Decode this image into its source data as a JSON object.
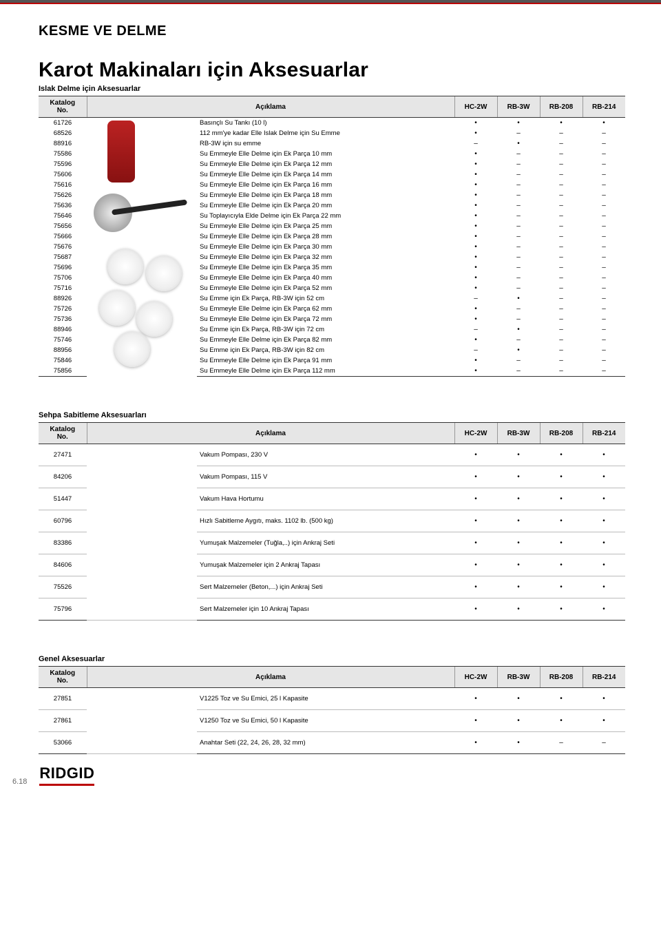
{
  "header": {
    "section": "KESME VE DELME",
    "title": "Karot Makinaları için Aksesuarlar"
  },
  "columns": {
    "katalog": "Katalog\nNo.",
    "aciklama": "Açıklama",
    "marks": [
      "HC-2W",
      "RB-3W",
      "RB-208",
      "RB-214"
    ]
  },
  "dot": "•",
  "dash": "–",
  "tables": [
    {
      "heading": "Islak Delme için Aksesuarlar",
      "tall": false,
      "rows": [
        {
          "no": "61726",
          "desc": "Basınçlı Su Tankı (10 l)",
          "m": [
            "d",
            "d",
            "d",
            "d"
          ]
        },
        {
          "no": "68526",
          "desc": "112 mm'ye kadar Elle Islak Delme için Su Emme",
          "m": [
            "d",
            "–",
            "–",
            "–"
          ]
        },
        {
          "no": "88916",
          "desc": "RB-3W için su emme",
          "m": [
            "–",
            "d",
            "–",
            "–"
          ]
        },
        {
          "no": "75586",
          "desc": "Su Emmeyle Elle Delme için Ek Parça 10 mm",
          "m": [
            "d",
            "–",
            "–",
            "–"
          ]
        },
        {
          "no": "75596",
          "desc": "Su Emmeyle Elle Delme için Ek Parça 12 mm",
          "m": [
            "d",
            "–",
            "–",
            "–"
          ]
        },
        {
          "no": "75606",
          "desc": "Su Emmeyle Elle Delme için Ek Parça 14 mm",
          "m": [
            "d",
            "–",
            "–",
            "–"
          ]
        },
        {
          "no": "75616",
          "desc": "Su Emmeyle Elle Delme için Ek Parça 16 mm",
          "m": [
            "d",
            "–",
            "–",
            "–"
          ]
        },
        {
          "no": "75626",
          "desc": "Su Emmeyle Elle Delme için Ek Parça 18 mm",
          "m": [
            "d",
            "–",
            "–",
            "–"
          ]
        },
        {
          "no": "75636",
          "desc": "Su Emmeyle Elle Delme için Ek Parça 20 mm",
          "m": [
            "d",
            "–",
            "–",
            "–"
          ]
        },
        {
          "no": "75646",
          "desc": "Su Toplayıcıyla Elde Delme için Ek Parça 22 mm",
          "m": [
            "d",
            "–",
            "–",
            "–"
          ]
        },
        {
          "no": "75656",
          "desc": "Su Emmeyle Elle Delme için Ek Parça 25 mm",
          "m": [
            "d",
            "–",
            "–",
            "–"
          ]
        },
        {
          "no": "75666",
          "desc": "Su Emmeyle Elle Delme için Ek Parça 28 mm",
          "m": [
            "d",
            "–",
            "–",
            "–"
          ]
        },
        {
          "no": "75676",
          "desc": "Su Emmeyle Elle Delme için Ek Parça 30 mm",
          "m": [
            "d",
            "–",
            "–",
            "–"
          ]
        },
        {
          "no": "75687",
          "desc": "Su Emmeyle Elle Delme için Ek Parça 32 mm",
          "m": [
            "d",
            "–",
            "–",
            "–"
          ]
        },
        {
          "no": "75696",
          "desc": "Su Emmeyle Elle Delme için Ek Parça 35 mm",
          "m": [
            "d",
            "–",
            "–",
            "–"
          ]
        },
        {
          "no": "75706",
          "desc": "Su Emmeyle Elle Delme için Ek Parça 40 mm",
          "m": [
            "d",
            "–",
            "–",
            "–"
          ]
        },
        {
          "no": "75716",
          "desc": "Su Emmeyle Elle Delme için Ek Parça 52 mm",
          "m": [
            "d",
            "–",
            "–",
            "–"
          ]
        },
        {
          "no": "88926",
          "desc": "Su Emme için Ek Parça, RB-3W için 52 cm",
          "m": [
            "–",
            "d",
            "–",
            "–"
          ]
        },
        {
          "no": "75726",
          "desc": "Su Emmeyle Elle Delme için Ek Parça 62 mm",
          "m": [
            "d",
            "–",
            "–",
            "–"
          ]
        },
        {
          "no": "75736",
          "desc": "Su Emmeyle Elle Delme için Ek Parça 72 mm",
          "m": [
            "d",
            "–",
            "–",
            "–"
          ]
        },
        {
          "no": "88946",
          "desc": "Su Emme için Ek Parça, RB-3W için 72 cm",
          "m": [
            "–",
            "d",
            "–",
            "–"
          ]
        },
        {
          "no": "75746",
          "desc": "Su Emmeyle Elle Delme için Ek Parça 82 mm",
          "m": [
            "d",
            "–",
            "–",
            "–"
          ]
        },
        {
          "no": "88956",
          "desc": "Su Emme için Ek Parça, RB-3W için 82 cm",
          "m": [
            "–",
            "d",
            "–",
            "–"
          ]
        },
        {
          "no": "75846",
          "desc": "Su Emmeyle Elle Delme için Ek Parça 91 mm",
          "m": [
            "d",
            "–",
            "–",
            "–"
          ]
        },
        {
          "no": "75856",
          "desc": "Su Emmeyle Elle Delme için Ek Parça 112 mm",
          "m": [
            "d",
            "–",
            "–",
            "–"
          ]
        }
      ]
    },
    {
      "heading": "Sehpa Sabitleme Aksesuarları",
      "tall": true,
      "rows": [
        {
          "no": "27471",
          "desc": "Vakum Pompası, 230 V",
          "m": [
            "d",
            "d",
            "d",
            "d"
          ]
        },
        {
          "no": "84206",
          "desc": "Vakum Pompası, 115 V",
          "m": [
            "d",
            "d",
            "d",
            "d"
          ]
        },
        {
          "no": "51447",
          "desc": "Vakum Hava Hortumu",
          "m": [
            "d",
            "d",
            "d",
            "d"
          ]
        },
        {
          "no": "60796",
          "desc": "Hızlı Sabitleme Aygıtı, maks. 1102 lb. (500 kg)",
          "m": [
            "d",
            "d",
            "d",
            "d"
          ]
        },
        {
          "no": "83386",
          "desc": "Yumuşak Malzemeler (Tuğla,..) için Ankraj Seti",
          "m": [
            "d",
            "d",
            "d",
            "d"
          ]
        },
        {
          "no": "84606",
          "desc": "Yumuşak Malzemeler için 2 Ankraj Tapası",
          "m": [
            "d",
            "d",
            "d",
            "d"
          ]
        },
        {
          "no": "75526",
          "desc": "Sert Malzemeler (Beton,...) için Ankraj Seti",
          "m": [
            "d",
            "d",
            "d",
            "d"
          ]
        },
        {
          "no": "75796",
          "desc": "Sert Malzemeler için 10 Ankraj Tapası",
          "m": [
            "d",
            "d",
            "d",
            "d"
          ]
        }
      ]
    },
    {
      "heading": "Genel Aksesuarlar",
      "tall": true,
      "rows": [
        {
          "no": "27851",
          "desc": "V1225 Toz ve Su Emici, 25 l Kapasite",
          "m": [
            "d",
            "d",
            "d",
            "d"
          ]
        },
        {
          "no": "27861",
          "desc": "V1250 Toz ve Su Emici, 50 l Kapasite",
          "m": [
            "d",
            "d",
            "d",
            "d"
          ]
        },
        {
          "no": "53066",
          "desc": "Anahtar Seti (22, 24, 26, 28, 32 mm)",
          "m": [
            "d",
            "d",
            "–",
            "–"
          ]
        }
      ]
    }
  ],
  "footer": {
    "logo": "RIDGID",
    "pageno": "6.18"
  },
  "style": {
    "header_bg": "#e6e6e6",
    "border_color": "#333333",
    "accent": "#b00000"
  }
}
